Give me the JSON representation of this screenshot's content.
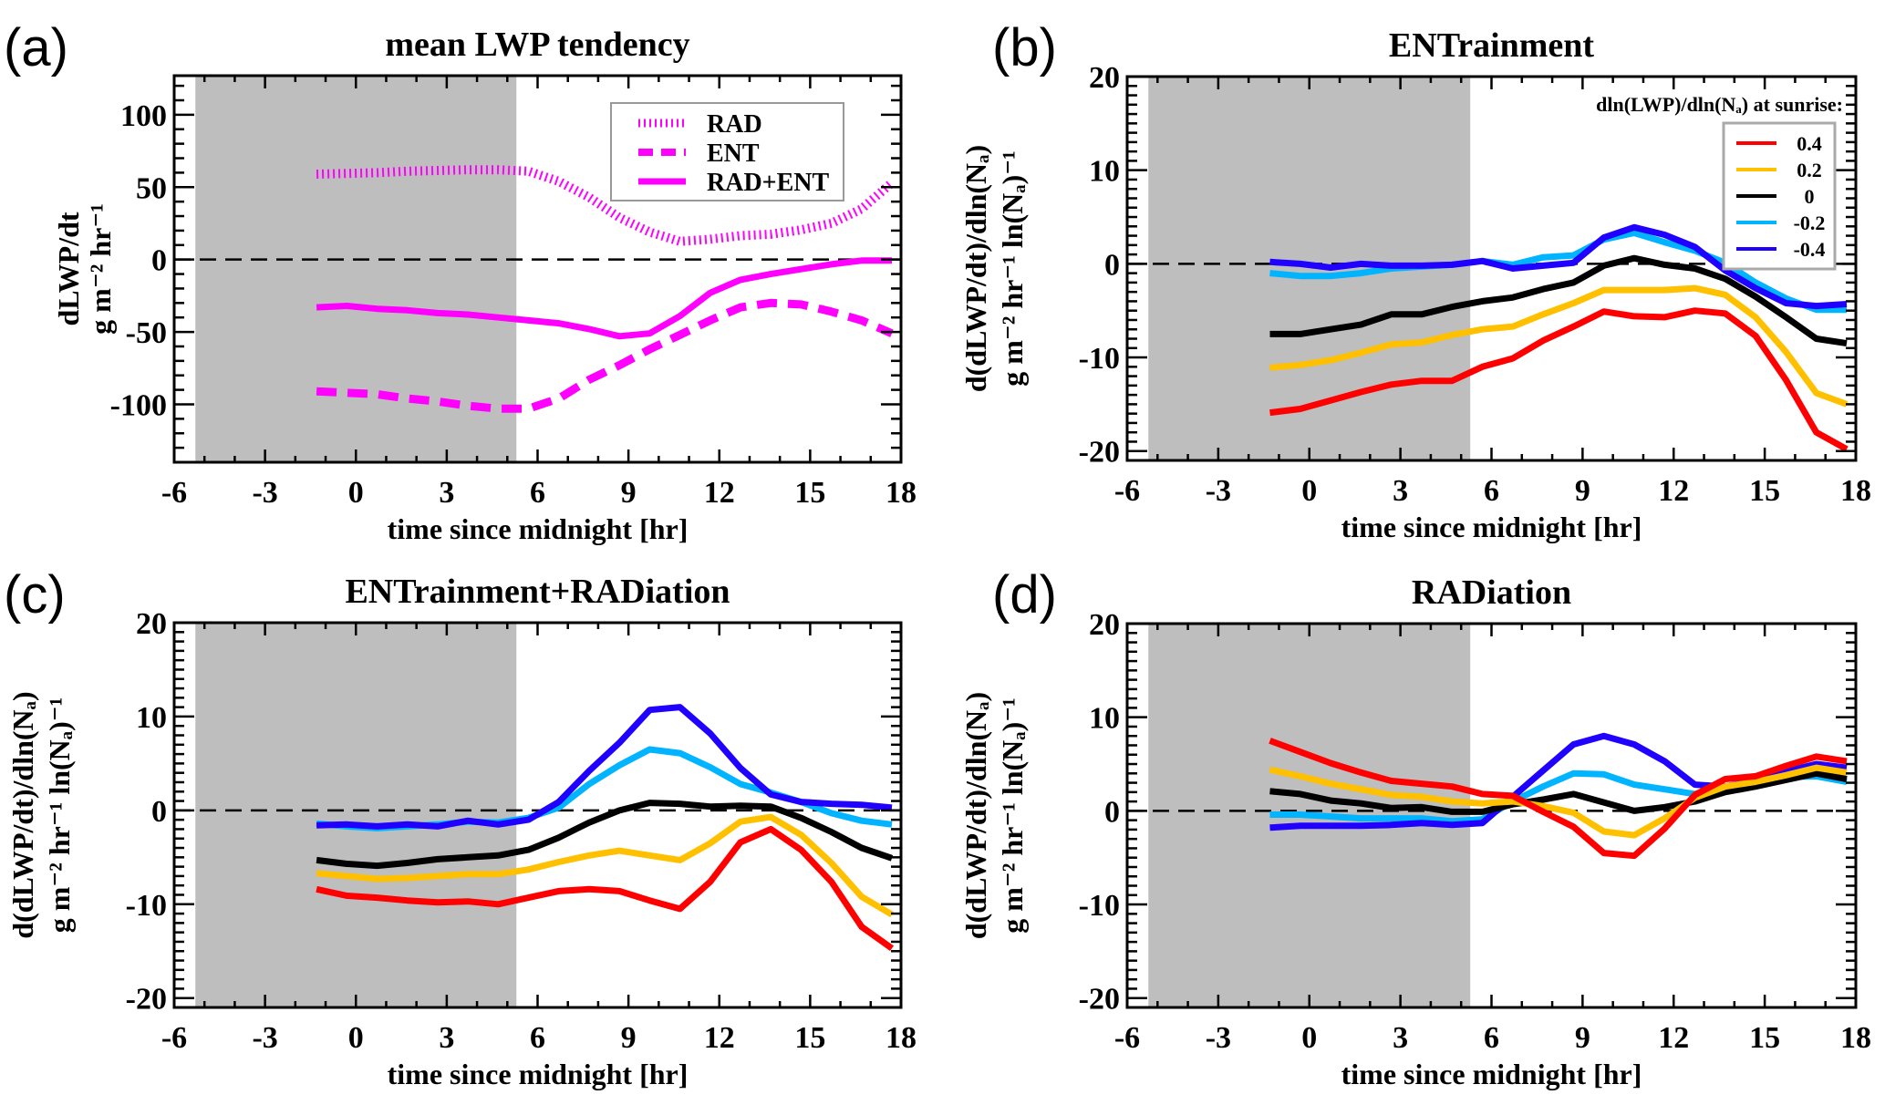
{
  "figure": {
    "night_shading": {
      "x_start": -5.3,
      "x_end": 5.3,
      "color": "#bebebe"
    },
    "line_colors": {
      "magenta": "#ff00ff",
      "0.4": "#ff0000",
      "0.2": "#ffc000",
      "0": "#000000",
      "-0.2": "#00b4ff",
      "-0.4": "#2000ff"
    }
  },
  "chart_data": [
    {
      "id": "a",
      "panel_tag": "(a)",
      "type": "line",
      "title": "mean LWP tendency",
      "xlabel": "time since midnight [hr]",
      "ylabel_line1": "dLWP/dt",
      "ylabel_line2": "g m⁻² hr⁻¹",
      "xlim": [
        -6,
        18
      ],
      "ylim": [
        -140,
        127
      ],
      "xticks": [
        -6,
        -3,
        0,
        3,
        6,
        9,
        12,
        15,
        18
      ],
      "yticks": [
        100,
        50,
        0,
        -50,
        -100
      ],
      "legend": {
        "position": "top-right",
        "title": "",
        "entries": [
          "RAD",
          "ENT",
          "RAD+ENT"
        ]
      },
      "x": [
        -1.3,
        -0.3,
        0.7,
        1.7,
        2.7,
        3.7,
        4.7,
        5.7,
        6.7,
        7.7,
        8.7,
        9.7,
        10.7,
        11.7,
        12.7,
        13.7,
        14.7,
        15.7,
        16.7,
        17.7
      ],
      "series": [
        {
          "name": "RAD",
          "style": "dotted",
          "color": "#ff00ff",
          "values": [
            59,
            59.5,
            60,
            61,
            61.5,
            62,
            62,
            61,
            54,
            43,
            29,
            19,
            12.5,
            14,
            16.5,
            17.5,
            20.5,
            25,
            35,
            53
          ]
        },
        {
          "name": "ENT",
          "style": "dashed",
          "color": "#ff00ff",
          "values": [
            -91,
            -92,
            -93,
            -96,
            -98,
            -101,
            -103,
            -103,
            -96,
            -83,
            -73,
            -62,
            -52,
            -42,
            -33,
            -30,
            -31,
            -36,
            -42,
            -51
          ]
        },
        {
          "name": "RAD+ENT",
          "style": "solid",
          "color": "#ff00ff",
          "values": [
            -33,
            -32,
            -34,
            -35,
            -37,
            -38,
            -40,
            -42,
            -44,
            -48,
            -53,
            -51,
            -39,
            -23,
            -14,
            -10,
            -6.6,
            -3.3,
            -0.7,
            -0.7
          ]
        }
      ]
    },
    {
      "id": "b",
      "panel_tag": "(b)",
      "type": "line",
      "title": "ENTrainment",
      "xlabel": "time since midnight [hr]",
      "ylabel_line1": "d(dLWP/dt)/dln(Nₐ)",
      "ylabel_line2": "g m⁻² hr⁻¹ ln(Nₐ)⁻¹",
      "xlim": [
        -6,
        18
      ],
      "ylim": [
        -21,
        20
      ],
      "xticks": [
        -6,
        -3,
        0,
        3,
        6,
        9,
        12,
        15,
        18
      ],
      "yticks": [
        20,
        10,
        0,
        -10,
        -20
      ],
      "legend": {
        "position": "top-right",
        "title": "dln(LWP)/dln(Nₐ) at sunrise:",
        "entries": [
          "0.4",
          "0.2",
          "0",
          "-0.2",
          "-0.4"
        ]
      },
      "x": [
        -1.3,
        -0.3,
        0.7,
        1.7,
        2.7,
        3.7,
        4.7,
        5.7,
        6.7,
        7.7,
        8.7,
        9.7,
        10.7,
        11.7,
        12.7,
        13.7,
        14.7,
        15.7,
        16.7,
        17.7
      ],
      "series": [
        {
          "name": "0.4",
          "color": "#ff0000",
          "values": [
            -15.9,
            -15.5,
            -14.6,
            -13.7,
            -12.9,
            -12.5,
            -12.5,
            -11.0,
            -10.1,
            -8.2,
            -6.7,
            -5.1,
            -5.6,
            -5.7,
            -5.0,
            -5.3,
            -7.7,
            -12.4,
            -18.0,
            -19.8
          ]
        },
        {
          "name": "0.2",
          "color": "#ffc000",
          "values": [
            -11.1,
            -10.8,
            -10.3,
            -9.5,
            -8.6,
            -8.4,
            -7.6,
            -7.0,
            -6.7,
            -5.4,
            -4.2,
            -2.8,
            -2.8,
            -2.8,
            -2.6,
            -3.3,
            -5.7,
            -9.4,
            -13.8,
            -15.0
          ]
        },
        {
          "name": "0",
          "color": "#000000",
          "values": [
            -7.5,
            -7.5,
            -7.0,
            -6.5,
            -5.4,
            -5.4,
            -4.6,
            -4.0,
            -3.6,
            -2.7,
            -2.0,
            -0.2,
            0.6,
            -0.1,
            -0.5,
            -1.6,
            -3.5,
            -5.7,
            -8.0,
            -8.5
          ]
        },
        {
          "name": "-0.2",
          "color": "#00b4ff",
          "values": [
            -1.0,
            -1.3,
            -1.3,
            -1.0,
            -0.5,
            -0.3,
            -0.1,
            0.3,
            -0.1,
            0.7,
            0.9,
            2.6,
            3.3,
            2.3,
            1.4,
            0.1,
            -2.0,
            -3.7,
            -4.9,
            -4.9
          ]
        },
        {
          "name": "-0.4",
          "color": "#2000ff",
          "values": [
            0.2,
            0.0,
            -0.4,
            0.0,
            -0.2,
            -0.2,
            -0.1,
            0.3,
            -0.5,
            -0.2,
            0.1,
            2.8,
            3.9,
            3.1,
            1.8,
            -0.7,
            -2.6,
            -4.2,
            -4.5,
            -4.3
          ]
        }
      ]
    },
    {
      "id": "c",
      "panel_tag": "(c)",
      "type": "line",
      "title": "ENTrainment+RADiation",
      "xlabel": "time since midnight [hr]",
      "ylabel_line1": "d(dLWP/dt)/dln(Nₐ)",
      "ylabel_line2": "g m⁻² hr⁻¹ ln(Nₐ)⁻¹",
      "xlim": [
        -6,
        18
      ],
      "ylim": [
        -21,
        20
      ],
      "xticks": [
        -6,
        -3,
        0,
        3,
        6,
        9,
        12,
        15,
        18
      ],
      "yticks": [
        20,
        10,
        0,
        -10,
        -20
      ],
      "x": [
        -1.3,
        -0.3,
        0.7,
        1.7,
        2.7,
        3.7,
        4.7,
        5.7,
        6.7,
        7.7,
        8.7,
        9.7,
        10.7,
        11.7,
        12.7,
        13.7,
        14.7,
        15.7,
        16.7,
        17.7
      ],
      "series": [
        {
          "name": "0.4",
          "color": "#ff0000",
          "values": [
            -8.4,
            -9.1,
            -9.3,
            -9.6,
            -9.8,
            -9.7,
            -10.0,
            -9.3,
            -8.6,
            -8.4,
            -8.6,
            -9.6,
            -10.5,
            -7.6,
            -3.4,
            -2.0,
            -4.2,
            -7.6,
            -12.4,
            -14.7
          ]
        },
        {
          "name": "0.2",
          "color": "#ffc000",
          "values": [
            -6.7,
            -7.0,
            -7.3,
            -7.2,
            -7.0,
            -6.8,
            -6.8,
            -6.3,
            -5.5,
            -4.8,
            -4.3,
            -4.8,
            -5.3,
            -3.5,
            -1.2,
            -0.7,
            -2.6,
            -5.6,
            -9.2,
            -11.1
          ]
        },
        {
          "name": "0",
          "color": "#000000",
          "values": [
            -5.3,
            -5.7,
            -5.9,
            -5.6,
            -5.2,
            -5.0,
            -4.8,
            -4.2,
            -2.9,
            -1.3,
            0.0,
            0.8,
            0.7,
            0.4,
            0.5,
            0.4,
            -0.8,
            -2.3,
            -4.0,
            -5.1
          ]
        },
        {
          "name": "-0.2",
          "color": "#00b4ff",
          "values": [
            -1.4,
            -1.7,
            -1.9,
            -1.7,
            -1.5,
            -1.2,
            -1.3,
            -0.8,
            0.3,
            2.8,
            4.8,
            6.5,
            6.1,
            4.6,
            2.8,
            1.9,
            0.9,
            -0.3,
            -1.1,
            -1.5
          ]
        },
        {
          "name": "-0.4",
          "color": "#2000ff",
          "values": [
            -1.6,
            -1.5,
            -1.7,
            -1.5,
            -1.7,
            -1.1,
            -1.5,
            -1.0,
            0.9,
            4.2,
            7.2,
            10.7,
            11.0,
            8.2,
            4.5,
            1.7,
            0.9,
            0.7,
            0.6,
            0.3
          ]
        }
      ]
    },
    {
      "id": "d",
      "panel_tag": "(d)",
      "type": "line",
      "title": "RADiation",
      "xlabel": "time since midnight [hr]",
      "ylabel_line1": "d(dLWP/dt)/dln(Nₐ)",
      "ylabel_line2": "g m⁻² hr⁻¹ ln(Nₐ)⁻¹",
      "xlim": [
        -6,
        18
      ],
      "ylim": [
        -21,
        20
      ],
      "xticks": [
        -6,
        -3,
        0,
        3,
        6,
        9,
        12,
        15,
        18
      ],
      "yticks": [
        20,
        10,
        0,
        -10,
        -20
      ],
      "x": [
        -1.3,
        -0.3,
        0.7,
        1.7,
        2.7,
        3.7,
        4.7,
        5.7,
        6.7,
        7.7,
        8.7,
        9.7,
        10.7,
        11.7,
        12.7,
        13.7,
        14.7,
        15.7,
        16.7,
        17.7
      ],
      "series": [
        {
          "name": "0.4",
          "color": "#ff0000",
          "values": [
            7.5,
            6.3,
            5.1,
            4.1,
            3.2,
            2.9,
            2.6,
            1.8,
            1.6,
            -0.1,
            -1.7,
            -4.5,
            -4.8,
            -1.9,
            1.7,
            3.4,
            3.7,
            4.8,
            5.8,
            5.3
          ]
        },
        {
          "name": "0.2",
          "color": "#ffc000",
          "values": [
            4.4,
            3.7,
            2.9,
            2.3,
            1.7,
            1.5,
            1.0,
            0.8,
            1.0,
            0.5,
            -0.2,
            -2.2,
            -2.6,
            -0.8,
            1.4,
            2.6,
            3.1,
            3.8,
            4.6,
            4.1
          ]
        },
        {
          "name": "0",
          "color": "#000000",
          "values": [
            2.1,
            1.8,
            1.1,
            0.8,
            0.3,
            0.4,
            -0.1,
            -0.1,
            0.7,
            1.2,
            1.8,
            0.9,
            0.0,
            0.4,
            1.0,
            2.0,
            2.6,
            3.3,
            4.0,
            3.4
          ]
        },
        {
          "name": "-0.2",
          "color": "#00b4ff",
          "values": [
            -0.4,
            -0.4,
            -0.6,
            -0.8,
            -0.8,
            -0.8,
            -1.1,
            -0.9,
            1.0,
            2.6,
            4.0,
            3.9,
            2.8,
            2.3,
            1.8,
            2.6,
            3.1,
            3.6,
            3.7,
            3.1
          ]
        },
        {
          "name": "-0.4",
          "color": "#2000ff",
          "values": [
            -1.8,
            -1.6,
            -1.6,
            -1.6,
            -1.5,
            -1.3,
            -1.5,
            -1.3,
            1.5,
            4.3,
            7.1,
            8.0,
            7.1,
            5.3,
            2.8,
            2.6,
            3.2,
            4.2,
            5.0,
            4.6
          ]
        }
      ]
    }
  ]
}
